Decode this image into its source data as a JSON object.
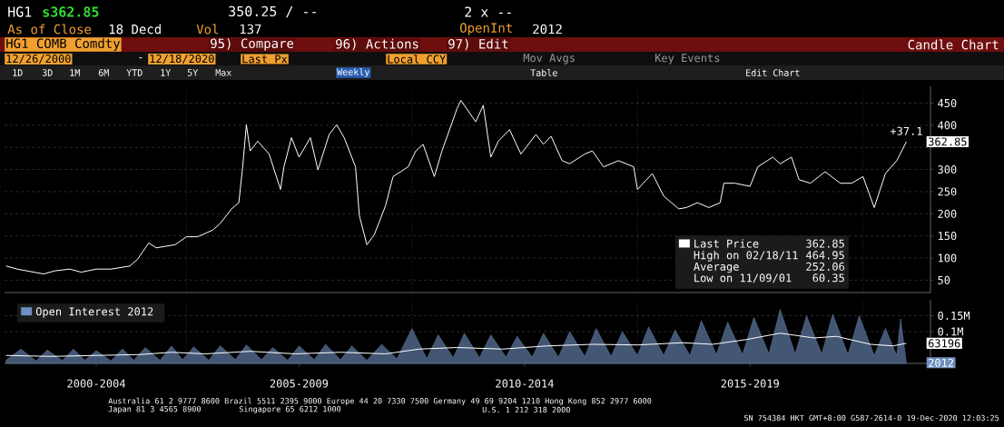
{
  "chart_data": [
    {
      "type": "line",
      "xlim": [
        "2000-12-20",
        "2021-07"
      ],
      "ylim": [
        22,
        488
      ],
      "yticks": [
        50,
        100,
        150,
        200,
        250,
        300,
        {
          "value": 350,
          "label": null
        },
        400,
        450
      ],
      "grid": "y",
      "legend": "bottom right",
      "tick_labels": "y",
      "ref_lines": [
        {
          "axis": "x",
          "value": "2005-01-01",
          "color": "#808080",
          "line_style": "dotted"
        },
        {
          "axis": "x",
          "value": "2010-01-01",
          "color": "#808080",
          "line_style": "dotted"
        },
        {
          "axis": "x",
          "value": "2015-01-01",
          "color": "#808080",
          "line_style": "dotted"
        },
        {
          "axis": "x",
          "value": "2020-01-01",
          "color": "#808080",
          "line_style": "dotted"
        }
      ],
      "series": [
        {
          "name": "Last Price",
          "color": "#ffffff",
          "x": [
            "2001-01",
            "2001-04",
            "2001-11",
            "2002-02",
            "2002-06",
            "2002-09",
            "2003-01",
            "2003-05",
            "2003-10",
            "2003-12",
            "2004-03",
            "2004-05",
            "2004-10",
            "2005-01",
            "2005-04",
            "2005-08",
            "2005-10",
            "2006-01",
            "2006-03",
            "2006-04",
            "2006-05",
            "2006-06",
            "2006-08",
            "2006-11",
            "2007-02",
            "2007-03",
            "2007-05",
            "2007-07",
            "2007-10",
            "2007-12",
            "2008-03",
            "2008-05",
            "2008-07",
            "2008-10",
            "2008-11",
            "2009-01",
            "2009-03",
            "2009-06",
            "2009-08",
            "2009-12",
            "2010-02",
            "2010-04",
            "2010-07",
            "2010-09",
            "2011-01",
            "2011-02",
            "2011-06",
            "2011-08",
            "2011-10",
            "2011-12",
            "2012-03",
            "2012-06",
            "2012-10",
            "2012-12",
            "2013-02",
            "2013-05",
            "2013-07",
            "2013-11",
            "2014-01",
            "2014-04",
            "2014-08",
            "2014-12",
            "2015-01",
            "2015-05",
            "2015-08",
            "2015-12",
            "2016-02",
            "2016-05",
            "2016-08",
            "2016-11",
            "2016-12",
            "2017-03",
            "2017-07",
            "2017-09",
            "2018-01",
            "2018-03",
            "2018-06",
            "2018-08",
            "2018-11",
            "2019-03",
            "2019-07",
            "2019-10",
            "2020-01",
            "2020-04",
            "2020-07",
            "2020-10",
            "2020-12-18"
          ],
          "values": [
            82,
            75,
            64,
            71,
            75,
            68,
            75,
            75,
            82,
            97,
            134,
            123,
            130,
            148,
            148,
            163,
            178,
            211,
            225,
            306,
            401,
            342,
            364,
            335,
            255,
            306,
            372,
            328,
            372,
            299,
            379,
            401,
            372,
            306,
            196,
            130,
            152,
            218,
            284,
            306,
            342,
            357,
            284,
            342,
            438,
            456,
            408,
            445,
            328,
            364,
            390,
            335,
            379,
            357,
            375,
            320,
            313,
            335,
            342,
            306,
            320,
            306,
            255,
            291,
            240,
            211,
            214,
            225,
            214,
            225,
            269,
            269,
            262,
            306,
            328,
            313,
            328,
            277,
            269,
            295,
            269,
            269,
            284,
            214,
            291,
            320,
            362.85
          ]
        }
      ],
      "annotations": [
        "HG1",
        "s362.85",
        "350.25 / --",
        "2 x --",
        "As of Close",
        "18 Decd",
        "Vol",
        "137",
        "OpenInt",
        "2012",
        "HG1 COMB Comdty",
        "95) Compare",
        "96) Actions",
        "97) Edit",
        "Candle Chart",
        "12/26/2000",
        "-",
        "12/18/2020",
        "Last Px",
        "Local CCY",
        "Mov Avgs",
        "Key Events",
        "1D",
        "3D",
        "1M",
        "6M",
        "YTD",
        "1Y",
        "5Y",
        "Max",
        "Weekly",
        "Table",
        "Edit Chart",
        "362.85",
        "High on 02/18/11",
        "464.95",
        "Average",
        "252.06",
        "Low on 11/09/01",
        "60.35",
        {
          "text": "+37.1",
          "x": "2020-12-18",
          "y": 372
        },
        {
          "text": "362.85",
          "x": "2020-12-18",
          "y": 362.85
        }
      ]
    },
    {
      "type": "area",
      "xlim": [
        "2000-12-20",
        "2021-07"
      ],
      "ylim": [
        0,
        200000
      ],
      "xticks": [
        {
          "value": "2003-01",
          "label": "2000-2004"
        },
        {
          "value": "2007-07",
          "label": "2005-2009"
        },
        {
          "value": "2012-07",
          "label": "2010-2014"
        },
        {
          "value": "2017-07",
          "label": "2015-2019"
        }
      ],
      "yticks": [
        {
          "value": 100000,
          "label": "0.1M"
        },
        {
          "value": 150000,
          "label": "0.15M"
        }
      ],
      "grid": "y",
      "legend": "top left",
      "ref_lines": [
        {
          "axis": "x",
          "value": "2005-01-01",
          "color": "#808080",
          "line_style": "dotted"
        },
        {
          "axis": "x",
          "value": "2010-01-01",
          "color": "#808080",
          "line_style": "dotted"
        },
        {
          "axis": "x",
          "value": "2015-01-01",
          "color": "#808080",
          "line_style": "dotted"
        },
        {
          "axis": "x",
          "value": "2020-01-01",
          "color": "#808080",
          "line_style": "dotted"
        }
      ],
      "series": [
        {
          "name": "Open Interest 2012",
          "color": "#6f8fbf",
          "x": [
            "2001-01",
            "2001-05",
            "2001-09",
            "2001-12",
            "2002-04",
            "2002-07",
            "2002-10",
            "2003-01",
            "2003-05",
            "2003-08",
            "2003-11",
            "2004-02",
            "2004-06",
            "2004-09",
            "2004-12",
            "2005-03",
            "2005-07",
            "2005-10",
            "2006-02",
            "2006-05",
            "2006-09",
            "2006-12",
            "2007-04",
            "2007-07",
            "2007-11",
            "2008-02",
            "2008-06",
            "2008-09",
            "2009-01",
            "2009-05",
            "2009-09",
            "2010-01",
            "2010-05",
            "2010-08",
            "2010-12",
            "2011-03",
            "2011-07",
            "2011-10",
            "2012-02",
            "2012-05",
            "2012-09",
            "2012-12",
            "2013-04",
            "2013-07",
            "2013-11",
            "2014-02",
            "2014-06",
            "2014-09",
            "2015-01",
            "2015-04",
            "2015-08",
            "2015-11",
            "2016-03",
            "2016-06",
            "2016-10",
            "2017-01",
            "2017-05",
            "2017-08",
            "2017-12",
            "2018-03",
            "2018-07",
            "2018-10",
            "2019-02",
            "2019-05",
            "2019-09",
            "2019-12",
            "2020-04",
            "2020-07",
            "2020-10",
            "2020-11",
            "2020-12-18"
          ],
          "values": [
            10000,
            45000,
            8000,
            42000,
            9000,
            45000,
            10000,
            40000,
            8000,
            46000,
            10000,
            50000,
            10000,
            55000,
            12000,
            52000,
            10000,
            56000,
            12000,
            58000,
            12000,
            50000,
            10000,
            55000,
            12000,
            60000,
            12000,
            55000,
            10000,
            60000,
            15000,
            110000,
            15000,
            90000,
            18000,
            95000,
            18000,
            90000,
            20000,
            85000,
            20000,
            95000,
            20000,
            100000,
            22000,
            110000,
            22000,
            100000,
            25000,
            115000,
            25000,
            105000,
            25000,
            135000,
            28000,
            130000,
            28000,
            145000,
            30000,
            170000,
            30000,
            150000,
            30000,
            155000,
            28000,
            150000,
            25000,
            110000,
            25000,
            140000,
            2012
          ]
        },
        {
          "type": "line",
          "color": "#ffffff",
          "x": [
            "2001-01",
            "2002-01",
            "2003-01",
            "2004-01",
            "2004-09",
            "2005-06",
            "2006-06",
            "2007-06",
            "2008-06",
            "2009-06",
            "2010-03",
            "2011-01",
            "2012-01",
            "2013-01",
            "2014-01",
            "2015-01",
            "2016-01",
            "2016-09",
            "2017-06",
            "2018-03",
            "2018-12",
            "2019-06",
            "2020-03",
            "2020-09",
            "2020-12-18"
          ],
          "values": [
            25000,
            22000,
            25000,
            28000,
            35000,
            30000,
            38000,
            30000,
            35000,
            30000,
            45000,
            50000,
            45000,
            55000,
            60000,
            58000,
            65000,
            60000,
            75000,
            95000,
            80000,
            85000,
            60000,
            55000,
            63196
          ]
        }
      ],
      "annotations": [
        {
          "text": "63196",
          "x": "2020-12-18",
          "y": 63196
        },
        {
          "text": "2012",
          "x": "2020-12-18",
          "y": 2012
        },
        "Australia 61 2 9777 8600 Brazil 5511 2395 9000 Europe 44 20 7330 7500 Germany 49 69 9204 1210 Hong Kong 852 2977 6000",
        "Japan 81 3 4565 8900",
        "Singapore 65 6212 1000",
        "U.S. 1 212 318 2000",
        "SN 754384 HKT GMT+8:00 G587-2614-0 19-Dec-2020 12:03:25"
      ]
    }
  ]
}
